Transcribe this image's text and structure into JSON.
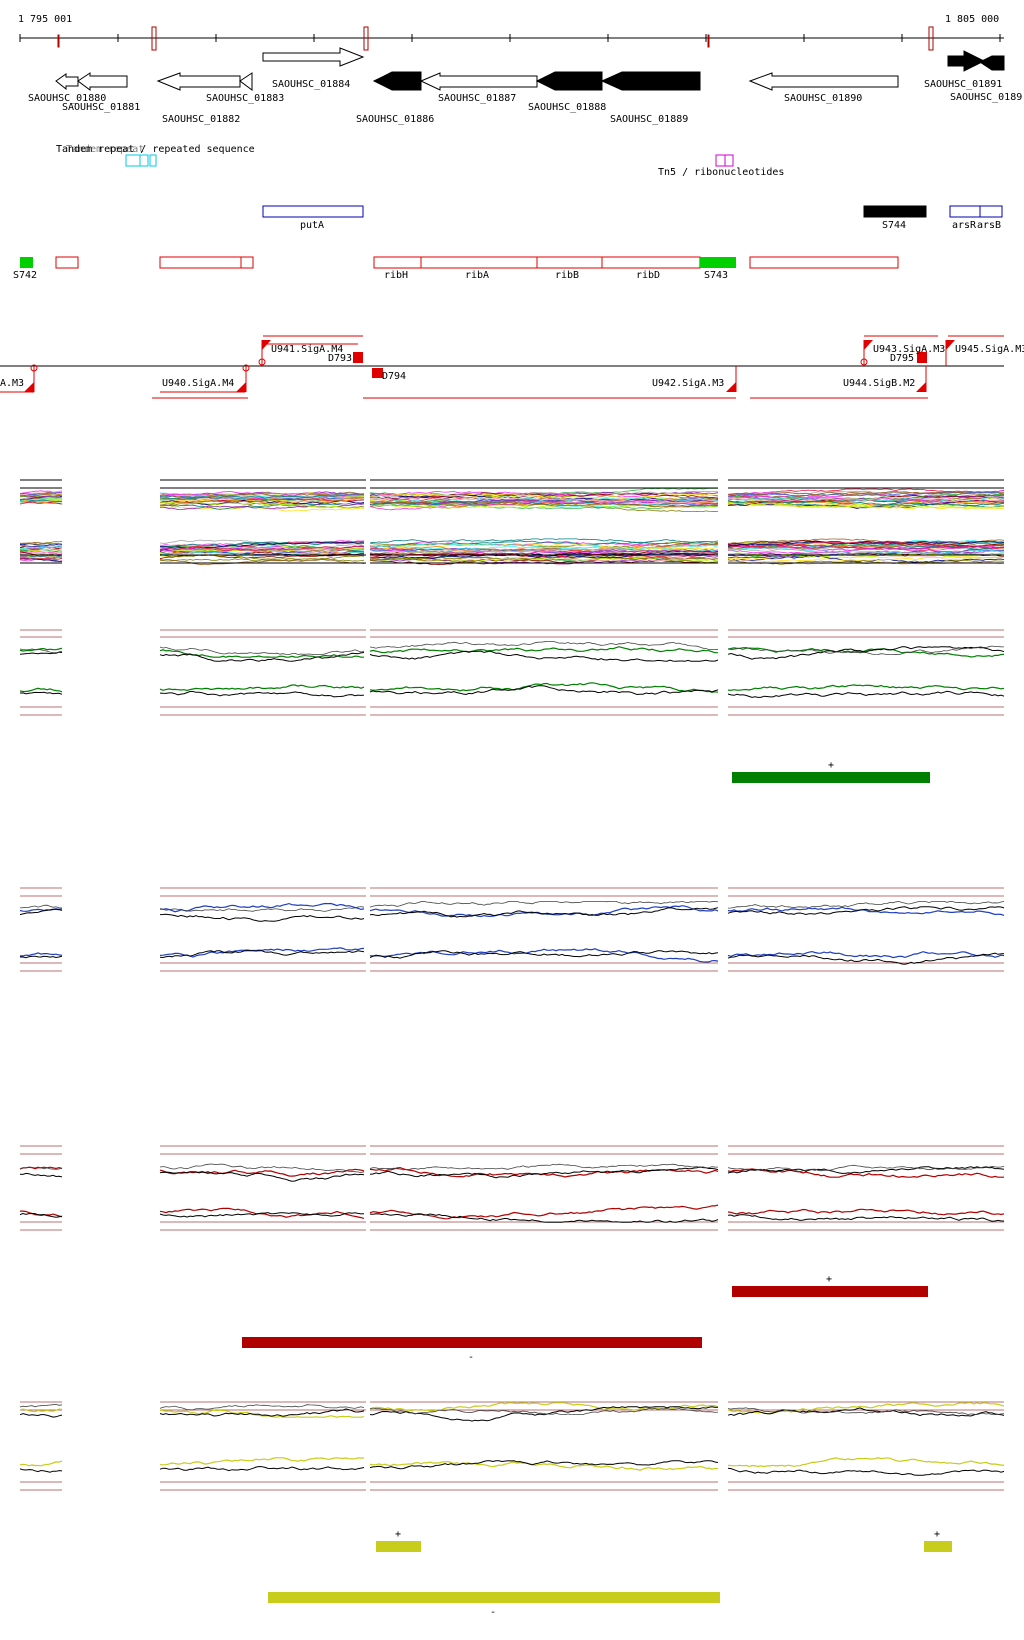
{
  "ruler": {
    "start_label": "1 795 001",
    "end_label": "1 805 000"
  },
  "genes": [
    {
      "id": "SAOUHSC_01880",
      "strand": "-",
      "filled": false
    },
    {
      "id": "SAOUHSC_01881",
      "strand": "-",
      "filled": false
    },
    {
      "id": "SAOUHSC_01882",
      "strand": "-",
      "filled": false
    },
    {
      "id": "SAOUHSC_01883",
      "strand": "-",
      "filled": false
    },
    {
      "id": "SAOUHSC_01884",
      "strand": "+",
      "filled": false
    },
    {
      "id": "SAOUHSC_01886",
      "strand": "-",
      "filled": true
    },
    {
      "id": "SAOUHSC_01887",
      "strand": "-",
      "filled": false
    },
    {
      "id": "SAOUHSC_01888",
      "strand": "-",
      "filled": true
    },
    {
      "id": "SAOUHSC_01889",
      "strand": "-",
      "filled": true
    },
    {
      "id": "SAOUHSC_01890",
      "strand": "-",
      "filled": false
    },
    {
      "id": "SAOUHSC_01891",
      "strand": "+",
      "filled": true
    },
    {
      "id": "SAOUHSC_0189",
      "strand": "-",
      "filled": true
    }
  ],
  "repeats": {
    "label_left": "Tandem repeat / repeated sequence",
    "label_right": "Tn5 / ribonucleotides"
  },
  "operons": {
    "blue_labels": [
      "putA",
      "arsR",
      "arsB"
    ],
    "black_label": "S744"
  },
  "annotation_row": {
    "green_labels": [
      "S742",
      "S743"
    ],
    "gene_names": [
      "ribH",
      "ribA",
      "ribB",
      "ribD"
    ]
  },
  "tss_track": {
    "labels": [
      "U941.SigA.M4",
      "D793",
      "D794",
      "U940.SigA.M4",
      "U942.SigA.M3",
      "U943.SigA.M3",
      "D795",
      "U945.SigA.M3",
      "U944.SigB.M2",
      "A.M3"
    ]
  },
  "conditions": [
    {
      "color": "#008000",
      "segments": [
        {
          "sign": "+"
        }
      ]
    },
    {
      "color": "#1f3fbf",
      "segments": []
    },
    {
      "color": "#b00000",
      "segments": [
        {
          "sign": "+"
        },
        {
          "sign": "-"
        }
      ]
    },
    {
      "color": "#c8cc1a",
      "segments": [
        {
          "sign": "+"
        },
        {
          "sign": "+"
        },
        {
          "sign": "-"
        }
      ]
    }
  ]
}
